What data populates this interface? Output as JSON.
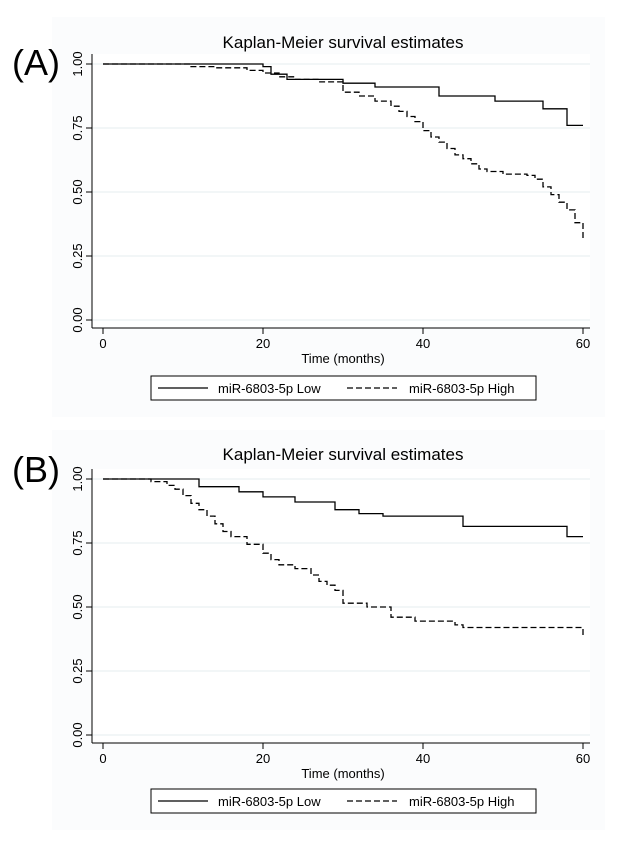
{
  "panels": [
    {
      "label": "(A)",
      "title": "Kaplan-Meier survival estimates",
      "xlabel": "Time (months)",
      "xticks": [
        "0",
        "20",
        "40",
        "60"
      ],
      "yticks": [
        "0.00",
        "0.25",
        "0.50",
        "0.75",
        "1.00"
      ]
    },
    {
      "label": "(B)",
      "title": "Kaplan-Meier survival estimates",
      "xlabel": "Time (months)",
      "xticks": [
        "0",
        "20",
        "40",
        "60"
      ],
      "yticks": [
        "0.00",
        "0.25",
        "0.50",
        "0.75",
        "1.00"
      ]
    }
  ],
  "chart_data": [
    {
      "type": "line",
      "step": true,
      "title": "Kaplan-Meier survival estimates",
      "xlabel": "Time (months)",
      "ylabel": "",
      "xlim": [
        0,
        60
      ],
      "ylim": [
        0,
        1
      ],
      "xticks": [
        0,
        20,
        40,
        60
      ],
      "yticks": [
        0,
        0.25,
        0.5,
        0.75,
        1.0
      ],
      "grid": true,
      "legend_position": "bottom",
      "series": [
        {
          "name": "miR-6803-5p Low",
          "style": "solid",
          "x": [
            0,
            20,
            21,
            23,
            30,
            34,
            42,
            49,
            55,
            58,
            60
          ],
          "y": [
            1.0,
            0.99,
            0.96,
            0.94,
            0.925,
            0.91,
            0.875,
            0.855,
            0.825,
            0.76,
            0.76
          ]
        },
        {
          "name": "miR-6803-5p High",
          "style": "dashed",
          "x": [
            0,
            11,
            14,
            18,
            20,
            22,
            24,
            27,
            30,
            32,
            34,
            36,
            37,
            38,
            39,
            40,
            41,
            42,
            43,
            44,
            45,
            46,
            47,
            48,
            50,
            53,
            54,
            55,
            56,
            57,
            58,
            59,
            60
          ],
          "y": [
            1.0,
            0.99,
            0.985,
            0.975,
            0.965,
            0.95,
            0.94,
            0.93,
            0.89,
            0.875,
            0.855,
            0.835,
            0.815,
            0.795,
            0.775,
            0.74,
            0.715,
            0.695,
            0.67,
            0.645,
            0.63,
            0.61,
            0.59,
            0.58,
            0.57,
            0.565,
            0.55,
            0.52,
            0.49,
            0.46,
            0.43,
            0.38,
            0.31
          ]
        }
      ]
    },
    {
      "type": "line",
      "step": true,
      "title": "Kaplan-Meier survival estimates",
      "xlabel": "Time (months)",
      "ylabel": "",
      "xlim": [
        0,
        60
      ],
      "ylim": [
        0,
        1
      ],
      "xticks": [
        0,
        20,
        40,
        60
      ],
      "yticks": [
        0,
        0.25,
        0.5,
        0.75,
        1.0
      ],
      "grid": true,
      "legend_position": "bottom",
      "series": [
        {
          "name": "miR-6803-5p Low",
          "style": "solid",
          "x": [
            0,
            12,
            17,
            20,
            24,
            29,
            32,
            35,
            45,
            58,
            60
          ],
          "y": [
            1.0,
            0.97,
            0.95,
            0.93,
            0.91,
            0.88,
            0.865,
            0.855,
            0.815,
            0.775,
            0.775
          ]
        },
        {
          "name": "miR-6803-5p High",
          "style": "dashed",
          "x": [
            0,
            6,
            8,
            9,
            10,
            11,
            12,
            13,
            14,
            15,
            16,
            18,
            20,
            21,
            22,
            24,
            26,
            27,
            28,
            29,
            30,
            33,
            36,
            39,
            44,
            45,
            60
          ],
          "y": [
            1.0,
            0.99,
            0.975,
            0.96,
            0.935,
            0.905,
            0.88,
            0.855,
            0.825,
            0.795,
            0.775,
            0.745,
            0.71,
            0.685,
            0.665,
            0.65,
            0.625,
            0.6,
            0.585,
            0.565,
            0.515,
            0.5,
            0.46,
            0.445,
            0.43,
            0.42,
            0.39
          ]
        }
      ]
    }
  ]
}
